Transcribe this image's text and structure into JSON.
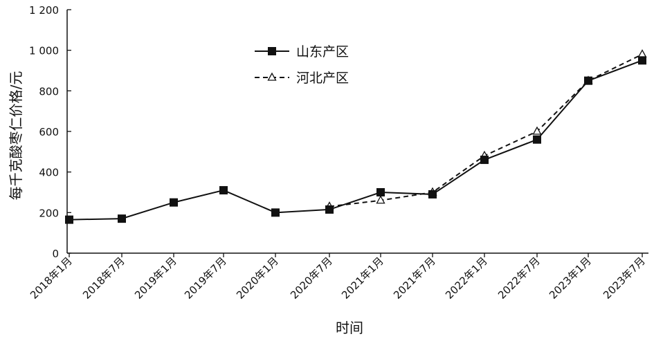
{
  "chart_data": {
    "type": "line",
    "categories": [
      "2018年1月",
      "2018年7月",
      "2019年1月",
      "2019年7月",
      "2020年1月",
      "2020年7月",
      "2021年1月",
      "2021年7月",
      "2022年1月",
      "2022年7月",
      "2023年1月",
      "2023年7月"
    ],
    "series": [
      {
        "name": "山东产区",
        "values": [
          165,
          170,
          250,
          310,
          200,
          215,
          300,
          290,
          460,
          560,
          850,
          950
        ],
        "marker": "filled-square",
        "line": "solid",
        "color": "#111111"
      },
      {
        "name": "河北产区",
        "values": [
          null,
          null,
          null,
          null,
          null,
          230,
          260,
          300,
          480,
          600,
          850,
          980
        ],
        "marker": "open-triangle",
        "line": "dashed",
        "color": "#111111"
      }
    ],
    "yticks": [
      0,
      200,
      400,
      600,
      800,
      1000,
      1200
    ],
    "ytick_labels": [
      "0",
      "200",
      "400",
      "600",
      "800",
      "1 000",
      "1 200"
    ],
    "xlabel": "时间",
    "ylabel": "每千克酸枣仁价格/元",
    "ylim": [
      0,
      1200
    ],
    "grid": false,
    "legend_position": "top-left-inside"
  }
}
